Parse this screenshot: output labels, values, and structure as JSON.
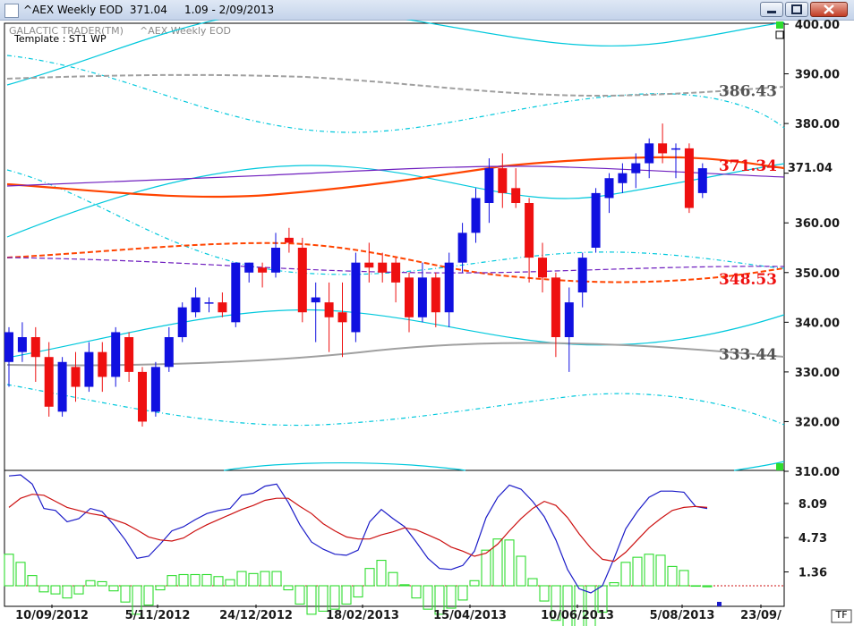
{
  "window": {
    "title": "^AEX Weekly EOD  371.04     1.09 - 2/09/2013"
  },
  "header": {
    "brand": "GALACTIC TRADER(TM)",
    "symbol": "^AEX Weekly EOD",
    "template": "Template : ST1 WP"
  },
  "corner_badges": {
    "bottom_right": "TF"
  },
  "colors": {
    "up": "#1010e0",
    "down": "#ee1010",
    "cyan": "#00c8dc",
    "orange": "#ff4400",
    "purple": "#6f1fbf",
    "gray": "#a0a0a0",
    "stoch_k": "#1c1cc8",
    "stoch_d": "#cc1010",
    "histogram": "#2edd2e"
  },
  "chart_data": [
    {
      "type": "candlestick",
      "name": "price",
      "x_dates": [
        "10/09/2012",
        "5/11/2012",
        "24/12/2012",
        "18/02/2013",
        "15/04/2013",
        "10/06/2013",
        "5/08/2013",
        "23/09/"
      ],
      "y_ticks": [
        310,
        320,
        330,
        340,
        350,
        360,
        370,
        380,
        390,
        400
      ],
      "ylim": [
        309.5,
        401.5
      ],
      "last_price": 371.04,
      "ohlc": [
        [
          332,
          338,
          327,
          339
        ],
        [
          334,
          337,
          332,
          340
        ],
        [
          337,
          333,
          328,
          339
        ],
        [
          333,
          323,
          321,
          336
        ],
        [
          322,
          332,
          321,
          333
        ],
        [
          331,
          327,
          324,
          334
        ],
        [
          327,
          334,
          326,
          336
        ],
        [
          334,
          329,
          326,
          336
        ],
        [
          329,
          338,
          327,
          339
        ],
        [
          337,
          330,
          328,
          338
        ],
        [
          330,
          320,
          319,
          331
        ],
        [
          322,
          331,
          321,
          332
        ],
        [
          331,
          337,
          330,
          339
        ],
        [
          337,
          343,
          336,
          344
        ],
        [
          342,
          345,
          341,
          347
        ],
        [
          344,
          344,
          342,
          345
        ],
        [
          344,
          342,
          341,
          346
        ],
        [
          340,
          352,
          339,
          352
        ],
        [
          350,
          352,
          348,
          352
        ],
        [
          351,
          350,
          347,
          352
        ],
        [
          350,
          355,
          349,
          358
        ],
        [
          357,
          356,
          354,
          359
        ],
        [
          355,
          342,
          340,
          357
        ],
        [
          344,
          345,
          336,
          348
        ],
        [
          344,
          341,
          334,
          348
        ],
        [
          342,
          340,
          333,
          348
        ],
        [
          338,
          352,
          336,
          354
        ],
        [
          352,
          351,
          348,
          356
        ],
        [
          352,
          350,
          348,
          354
        ],
        [
          352,
          348,
          344,
          353
        ],
        [
          349,
          341,
          338,
          350
        ],
        [
          341,
          349,
          340,
          352
        ],
        [
          349,
          342,
          339,
          350
        ],
        [
          342,
          352,
          339,
          354
        ],
        [
          352,
          358,
          350,
          360
        ],
        [
          358,
          365,
          356,
          367
        ],
        [
          364,
          371,
          360,
          373
        ],
        [
          371,
          366,
          363,
          374
        ],
        [
          367,
          364,
          363,
          371
        ],
        [
          364,
          353,
          348,
          365
        ],
        [
          353,
          349,
          346,
          356
        ],
        [
          349,
          337,
          333,
          350
        ],
        [
          337,
          344,
          330,
          347
        ],
        [
          346,
          353,
          343,
          354
        ],
        [
          355,
          366,
          354,
          367
        ],
        [
          365,
          369,
          362,
          370
        ],
        [
          368,
          370,
          366,
          372
        ],
        [
          370,
          372,
          367,
          374
        ],
        [
          372,
          376,
          369,
          377
        ],
        [
          376,
          374,
          372,
          380
        ],
        [
          375,
          375,
          369,
          376
        ],
        [
          375,
          363,
          362,
          376
        ],
        [
          366,
          371,
          365,
          372
        ]
      ],
      "annotations": [
        {
          "label": "386.43",
          "y": 386.43,
          "color": "#555555"
        },
        {
          "label": "371.34",
          "y": 371.34,
          "color": "#ee1010"
        },
        {
          "label": "348.53",
          "y": 348.53,
          "color": "#ee1010"
        },
        {
          "label": "333.44",
          "y": 333.44,
          "color": "#555555"
        }
      ]
    },
    {
      "type": "line+bar",
      "name": "oscillator",
      "y_ticks": [
        1.36,
        4.73,
        8.09
      ],
      "x_end_label": "23/09/",
      "k_line": [
        10.8,
        10.9,
        10,
        7.6,
        7.4,
        6.3,
        6.6,
        7.6,
        7.3,
        6,
        4.5,
        2.7,
        2.9,
        4.1,
        5.4,
        5.8,
        6.5,
        7.1,
        7.4,
        7.6,
        8.9,
        9.1,
        9.8,
        10,
        8.2,
        6,
        4.3,
        3.6,
        3.1,
        3,
        3.5,
        6.3,
        7.5,
        6.6,
        5.8,
        4.3,
        2.7,
        1.7,
        1.6,
        2,
        3.4,
        6.7,
        8.7,
        9.9,
        9.5,
        8.3,
        6.8,
        4.5,
        1.6,
        -0.3,
        -0.7,
        0,
        2.7,
        5.6,
        7.3,
        8.7,
        9.3,
        9.3,
        9.2,
        7.8,
        7.6
      ],
      "d_line": [
        7.7,
        8.6,
        9,
        8.9,
        8.3,
        7.7,
        7.4,
        7.1,
        6.9,
        6.5,
        6.1,
        5.5,
        4.8,
        4.5,
        4.4,
        4.7,
        5.4,
        6,
        6.5,
        7,
        7.5,
        7.9,
        8.4,
        8.6,
        8.6,
        7.8,
        7.1,
        6.1,
        5.4,
        4.8,
        4.6,
        4.6,
        5,
        5.3,
        5.7,
        5.5,
        5,
        4.5,
        3.8,
        3.4,
        2.9,
        3.2,
        4.1,
        5.4,
        6.6,
        7.6,
        8.3,
        7.9,
        6.7,
        5.1,
        3.7,
        2.6,
        2.4,
        3.3,
        4.5,
        5.7,
        6.6,
        7.4,
        7.7,
        7.8,
        7.7
      ],
      "histogram": [
        3.1,
        2.3,
        1,
        -0.6,
        -0.8,
        -1.2,
        -0.8,
        0.5,
        0.4,
        -0.5,
        -1.6,
        -2.8,
        -1.9,
        -0.4,
        1,
        1.1,
        1.1,
        1.1,
        0.9,
        0.6,
        1.4,
        1.2,
        1.4,
        1.4,
        -0.4,
        -1.8,
        -2.8,
        -2.5,
        -2.3,
        -1.8,
        -1.1,
        1.7,
        2.5,
        1.3,
        0.1,
        -1.2,
        -2.3,
        -2.8,
        -2.2,
        -1.4,
        0.5,
        3.5,
        4.6,
        4.5,
        2.9,
        0.7,
        -1.5,
        -3.4,
        -5.1,
        -5.4,
        -4.4,
        -2.6,
        0.3,
        2.3,
        2.8,
        3.1,
        3,
        1.9,
        1.5,
        0,
        -0.1
      ],
      "baseline": 0
    }
  ]
}
